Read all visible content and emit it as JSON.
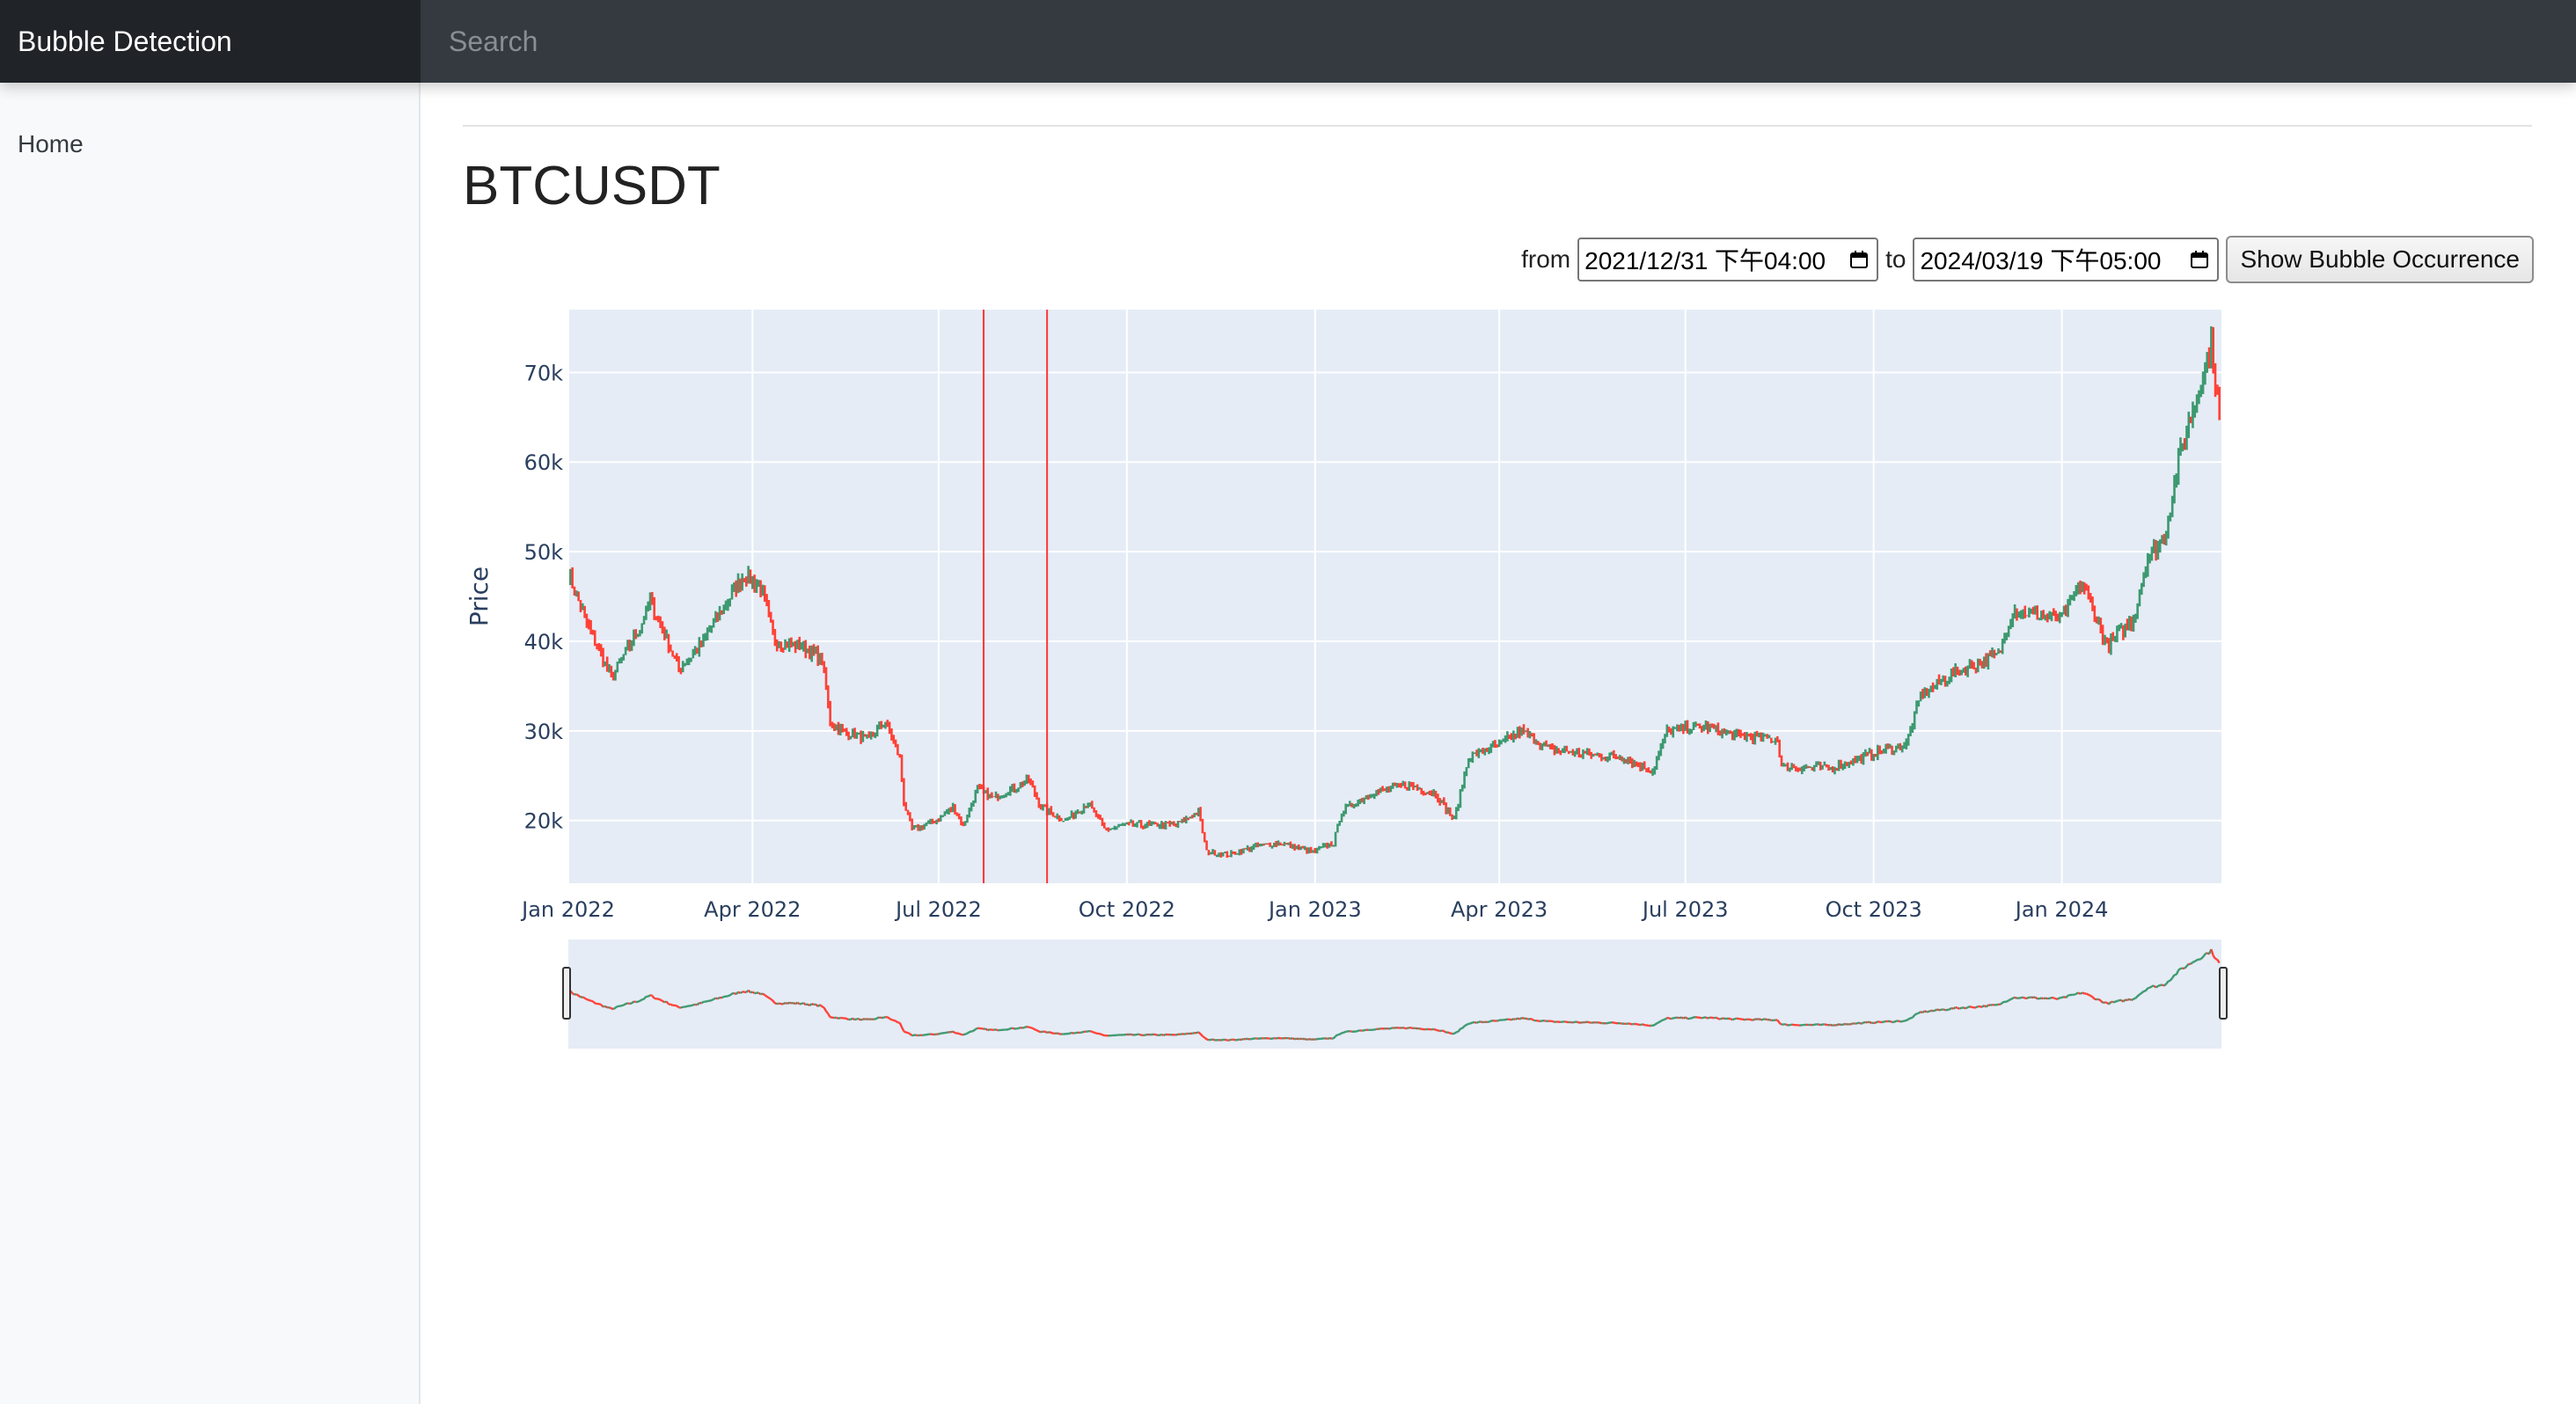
{
  "navbar": {
    "brand": "Bubble Detection",
    "search_placeholder": "Search"
  },
  "sidebar": {
    "items": [
      {
        "label": "Home"
      }
    ]
  },
  "main": {
    "title": "BTCUSDT",
    "controls": {
      "from_label": "from",
      "from_value": "2021/12/31 下午04:00",
      "to_label": "to",
      "to_value": "2024/03/19 下午05:00",
      "button_label": "Show Bubble Occurrence"
    }
  },
  "colors": {
    "increasing": "#3d9970",
    "decreasing": "#ff4136",
    "bubble_line": "#ff3333",
    "plot_bg": "#e5ecf6"
  },
  "chart_data": {
    "type": "candlestick",
    "ylabel": "Price",
    "x_range": [
      "2022-01-01",
      "2024-03-19"
    ],
    "y_range": [
      13000,
      77000
    ],
    "y_ticks": [
      20000,
      30000,
      40000,
      50000,
      60000,
      70000
    ],
    "y_tick_labels": [
      "20k",
      "30k",
      "40k",
      "50k",
      "60k",
      "70k"
    ],
    "x_ticks": [
      "2022-01-01",
      "2022-04-01",
      "2022-07-01",
      "2022-10-01",
      "2023-01-01",
      "2023-04-01",
      "2023-07-01",
      "2023-10-01",
      "2024-01-01"
    ],
    "x_tick_labels": [
      "Jan 2022",
      "Apr 2022",
      "Jul 2022",
      "Oct 2022",
      "Jan 2023",
      "Apr 2023",
      "Jul 2023",
      "Oct 2023",
      "Jan 2024"
    ],
    "bubble_markers": [
      "2022-07-23",
      "2022-08-23"
    ],
    "rangeslider": true,
    "close_series": [
      [
        "2022-01-01",
        47500
      ],
      [
        "2022-01-10",
        42000
      ],
      [
        "2022-01-22",
        36000
      ],
      [
        "2022-02-05",
        41500
      ],
      [
        "2022-02-10",
        44500
      ],
      [
        "2022-02-24",
        37000
      ],
      [
        "2022-03-05",
        39000
      ],
      [
        "2022-03-28",
        47500
      ],
      [
        "2022-04-05",
        46000
      ],
      [
        "2022-04-12",
        40000
      ],
      [
        "2022-04-25",
        39500
      ],
      [
        "2022-05-05",
        38000
      ],
      [
        "2022-05-09",
        31000
      ],
      [
        "2022-05-15",
        30000
      ],
      [
        "2022-05-28",
        29000
      ],
      [
        "2022-06-05",
        31000
      ],
      [
        "2022-06-12",
        27000
      ],
      [
        "2022-06-14",
        22000
      ],
      [
        "2022-06-18",
        19000
      ],
      [
        "2022-06-30",
        20000
      ],
      [
        "2022-07-08",
        21500
      ],
      [
        "2022-07-13",
        19500
      ],
      [
        "2022-07-20",
        23500
      ],
      [
        "2022-07-28",
        22500
      ],
      [
        "2022-08-10",
        24000
      ],
      [
        "2022-08-14",
        24500
      ],
      [
        "2022-08-20",
        21500
      ],
      [
        "2022-09-01",
        20000
      ],
      [
        "2022-09-12",
        22000
      ],
      [
        "2022-09-20",
        19000
      ],
      [
        "2022-10-01",
        19500
      ],
      [
        "2022-10-25",
        19500
      ],
      [
        "2022-11-05",
        21000
      ],
      [
        "2022-11-09",
        16500
      ],
      [
        "2022-11-20",
        16200
      ],
      [
        "2022-12-01",
        17000
      ],
      [
        "2022-12-15",
        17500
      ],
      [
        "2022-12-31",
        16500
      ],
      [
        "2023-01-10",
        17500
      ],
      [
        "2023-01-14",
        21000
      ],
      [
        "2023-01-28",
        23000
      ],
      [
        "2023-02-15",
        24000
      ],
      [
        "2023-03-01",
        23000
      ],
      [
        "2023-03-10",
        20000
      ],
      [
        "2023-03-17",
        27000
      ],
      [
        "2023-04-01",
        28500
      ],
      [
        "2023-04-12",
        30000
      ],
      [
        "2023-04-25",
        28000
      ],
      [
        "2023-05-10",
        27500
      ],
      [
        "2023-06-01",
        27000
      ],
      [
        "2023-06-15",
        25500
      ],
      [
        "2023-06-22",
        30000
      ],
      [
        "2023-07-10",
        30500
      ],
      [
        "2023-07-25",
        29500
      ],
      [
        "2023-08-15",
        29000
      ],
      [
        "2023-08-17",
        26000
      ],
      [
        "2023-09-10",
        25800
      ],
      [
        "2023-10-01",
        27500
      ],
      [
        "2023-10-17",
        28500
      ],
      [
        "2023-10-24",
        34000
      ],
      [
        "2023-11-10",
        36500
      ],
      [
        "2023-12-01",
        38500
      ],
      [
        "2023-12-08",
        43500
      ],
      [
        "2023-12-31",
        42500
      ],
      [
        "2024-01-11",
        46500
      ],
      [
        "2024-01-23",
        39500
      ],
      [
        "2024-02-05",
        42500
      ],
      [
        "2024-02-12",
        49500
      ],
      [
        "2024-02-20",
        51500
      ],
      [
        "2024-02-28",
        61000
      ],
      [
        "2024-03-05",
        66000
      ],
      [
        "2024-03-14",
        73000
      ],
      [
        "2024-03-19",
        63000
      ]
    ]
  }
}
